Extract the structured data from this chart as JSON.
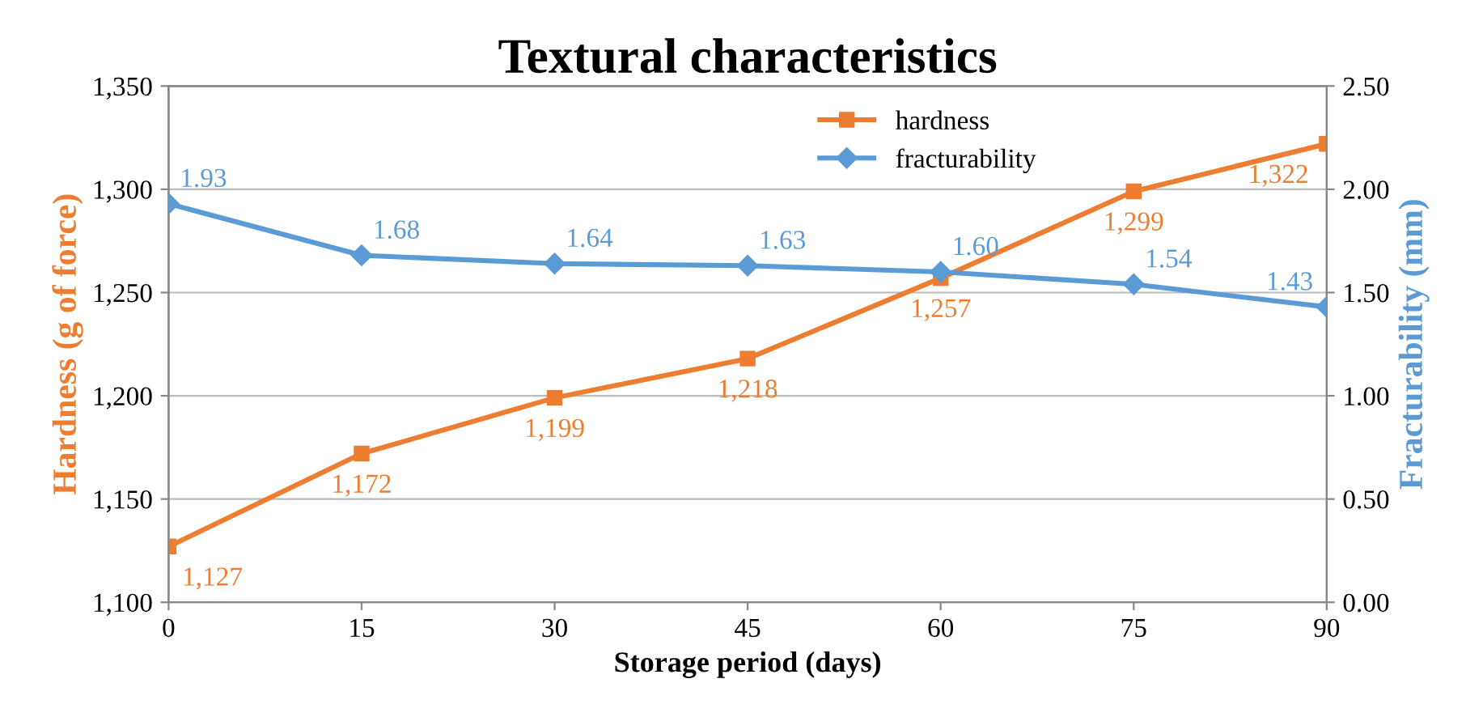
{
  "chart_data": {
    "type": "line",
    "title": "Textural characteristics",
    "xlabel": "Storage period (days)",
    "ylabel": "Hardness (g of force)",
    "y2label": "Fracturability (mm)",
    "x": [
      0,
      15,
      30,
      45,
      60,
      75,
      90
    ],
    "series": [
      {
        "name": "hardness",
        "color": "#ed7d31",
        "marker": "square",
        "values": [
          1127,
          1172,
          1199,
          1218,
          1257,
          1299,
          1322
        ],
        "value_labels": [
          "1,127",
          "1,172",
          "1,199",
          "1,218",
          "1,257",
          "1,299",
          "1,322"
        ]
      },
      {
        "name": "fracturability",
        "color": "#5b9bd5",
        "marker": "diamond",
        "axis": "y2",
        "values": [
          1.93,
          1.68,
          1.64,
          1.63,
          1.6,
          1.54,
          1.43
        ],
        "value_labels": [
          "1.93",
          "1.68",
          "1.64",
          "1.63",
          "1.60",
          "1.54",
          "1.43"
        ]
      }
    ],
    "xlim": [
      0,
      90
    ],
    "xticks": [
      0,
      15,
      30,
      45,
      60,
      75,
      90
    ],
    "ylim": [
      1100,
      1350
    ],
    "yticks": [
      {
        "value": 1100,
        "label": "1,100"
      },
      {
        "value": 1150,
        "label": "1,150"
      },
      {
        "value": 1200,
        "label": "1,200"
      },
      {
        "value": 1250,
        "label": "1,250"
      },
      {
        "value": 1300,
        "label": "1,300"
      },
      {
        "value": 1350,
        "label": "1,350"
      }
    ],
    "y2lim": [
      0,
      2.5
    ],
    "y2ticks": [
      {
        "value": 0,
        "label": "0.00"
      },
      {
        "value": 0.5,
        "label": "0.50"
      },
      {
        "value": 1,
        "label": "1.00"
      },
      {
        "value": 1.5,
        "label": "1.50"
      },
      {
        "value": 2,
        "label": "2.00"
      },
      {
        "value": 2.5,
        "label": "2.50"
      }
    ],
    "grid": "y",
    "legend": "top right",
    "line_style": "solid"
  }
}
